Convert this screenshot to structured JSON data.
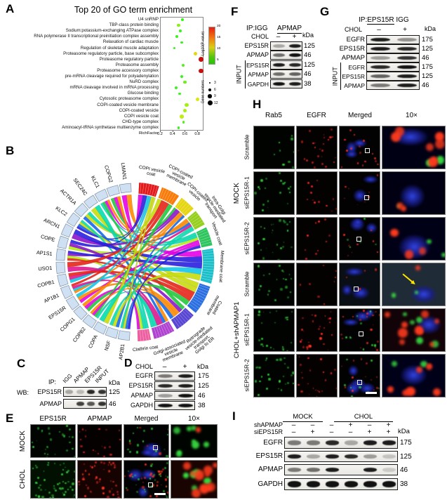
{
  "panels": {
    "a": {
      "label": "A",
      "title": "Top 20 of GO term enrichment",
      "xlabel": "RichFactor",
      "x_ticks": [
        "0.2",
        "0.4",
        "0.6",
        "0.8"
      ],
      "colorbar_title": "-Log10(P-value)",
      "colorbar_ticks": [
        "20",
        "15",
        "10",
        "5"
      ],
      "size_legend_title": "Gene numbers",
      "size_legend_ticks": [
        "3",
        "6",
        "9",
        "12"
      ],
      "chart_data": {
        "type": "scatter",
        "title": "Top 20 of GO term enrichment",
        "xlabel": "RichFactor",
        "xlim": [
          0.2,
          0.9
        ],
        "color_scale": {
          "label": "-Log10(P-value)",
          "low": "#24c40a",
          "high": "#e32010",
          "range": [
            5,
            20
          ]
        },
        "size_scale": {
          "label": "Gene numbers",
          "ticks": [
            3,
            6,
            9,
            12
          ]
        },
        "points": [
          {
            "term": "U4 snRNP",
            "rich_factor": 0.56,
            "neg_log10_p": 6,
            "gene_number": 3
          },
          {
            "term": "TBP-class protein binding",
            "rich_factor": 0.5,
            "neg_log10_p": 9,
            "gene_number": 5
          },
          {
            "term": "Sodium:potassium-exchanging ATPase complex",
            "rich_factor": 0.53,
            "neg_log10_p": 6,
            "gene_number": 3
          },
          {
            "term": "RNA polymerase II transcriptional preinitiation complex assembly",
            "rich_factor": 0.47,
            "neg_log10_p": 6,
            "gene_number": 4
          },
          {
            "term": "Relaxation of cardiac muscle",
            "rich_factor": 0.55,
            "neg_log10_p": 6,
            "gene_number": 3
          },
          {
            "term": "Regulation of skeletal muscle adaptation",
            "rich_factor": 0.43,
            "neg_log10_p": 6,
            "gene_number": 3
          },
          {
            "term": "Proteasome regulatory particle, base subcomplex",
            "rich_factor": 0.77,
            "neg_log10_p": 13,
            "gene_number": 6
          },
          {
            "term": "Proteasome regulatory particle",
            "rich_factor": 0.86,
            "neg_log10_p": 20,
            "gene_number": 9
          },
          {
            "term": "Proteasome assembly",
            "rich_factor": 0.57,
            "neg_log10_p": 7,
            "gene_number": 4
          },
          {
            "term": "Proteasome accessory complex",
            "rich_factor": 0.86,
            "neg_log10_p": 20,
            "gene_number": 9
          },
          {
            "term": "pre-mRNA cleavage required for polyadenylation",
            "rich_factor": 0.55,
            "neg_log10_p": 6,
            "gene_number": 4
          },
          {
            "term": "NuRD complex",
            "rich_factor": 0.6,
            "neg_log10_p": 8,
            "gene_number": 4
          },
          {
            "term": "mRNA cleavage involved in mRNA processing",
            "rich_factor": 0.46,
            "neg_log10_p": 6,
            "gene_number": 4
          },
          {
            "term": "Glucose binding",
            "rich_factor": 0.52,
            "neg_log10_p": 6,
            "gene_number": 3
          },
          {
            "term": "Cytosolic proteasome complex",
            "rich_factor": 0.8,
            "neg_log10_p": 12,
            "gene_number": 6
          },
          {
            "term": "COPI-coated vesicle membrane",
            "rich_factor": 0.63,
            "neg_log10_p": 10,
            "gene_number": 6
          },
          {
            "term": "COPI-coated vesicle",
            "rich_factor": 0.6,
            "neg_log10_p": 10,
            "gene_number": 6
          },
          {
            "term": "COPI vesicle coat",
            "rich_factor": 0.55,
            "neg_log10_p": 11,
            "gene_number": 8
          },
          {
            "term": "CHD-type complex",
            "rich_factor": 0.58,
            "neg_log10_p": 7,
            "gene_number": 3
          },
          {
            "term": "Aminoacyl-tRNA synthetase multienzyme complex",
            "rich_factor": 0.5,
            "neg_log10_p": 6,
            "gene_number": 3
          }
        ]
      }
    },
    "b": {
      "label": "B",
      "chart_data_note": "chord diagram: genes (left, light blue) linked to GO terms (right, colored)",
      "genes": [
        "LMAN1",
        "COPG2",
        "KLC1",
        "SEC24C",
        "ACTR1A",
        "KLC2",
        "ARCN1",
        "COPE",
        "AP1S1",
        "USO1",
        "COPB1",
        "AP1B1",
        "EPS15R",
        "COPG1",
        "COPB2",
        "COPA",
        "NSF",
        "AP2B1"
      ],
      "gene_color": "#cfe0f2",
      "go_terms": [
        {
          "name": "COPI vesicle coat",
          "color": "#e31a1c"
        },
        {
          "name": "COPI-coated vesicle membrane",
          "color": "#f97b0a"
        },
        {
          "name": "COPI-coated vesicle",
          "color": "#e6d513"
        },
        {
          "name": "Intra-Golgi vesicle-mediated transport",
          "color": "#96cf1e"
        },
        {
          "name": "Vesicle coat",
          "color": "#2ec45e"
        },
        {
          "name": "Membrane coat",
          "color": "#1bbfc9"
        },
        {
          "name": "Coated membrane",
          "color": "#2b6fe0"
        },
        {
          "name": "Retrograde vesicle-mediated transport, Golgi to ER",
          "color": "#5946d2"
        },
        {
          "name": "Golgi-associated vesicle membrane",
          "color": "#b044d0"
        },
        {
          "name": "Clathrin coat",
          "color": "#ee5fa0"
        }
      ]
    },
    "c": {
      "label": "C",
      "wb": "WB:",
      "ip": "IP:",
      "kda": "kDa",
      "lanes": [
        "IGG",
        "APMAP",
        "EPS15R",
        "INPUT"
      ],
      "rows": [
        {
          "protein": "EPS15R",
          "kda": "125",
          "bands": [
            0.3,
            0.22,
            0.85,
            0.8
          ]
        },
        {
          "protein": "APMAP",
          "kda": "46",
          "bands": [
            0,
            0.75,
            0.65,
            0.8
          ]
        }
      ]
    },
    "d": {
      "label": "D",
      "condition": "CHOL",
      "signs": [
        "–",
        "+"
      ],
      "kda": "kDa",
      "rows": [
        {
          "protein": "EGFR",
          "kda": "175",
          "bands": [
            0.5,
            0.9
          ]
        },
        {
          "protein": "EPS15R",
          "kda": "125",
          "bands": [
            0.85,
            0.9
          ]
        },
        {
          "protein": "APMAP",
          "kda": "46",
          "bands": [
            0.35,
            0.95
          ]
        },
        {
          "protein": "GAPDH",
          "kda": "38",
          "bands": [
            0.95,
            0.95
          ]
        }
      ]
    },
    "e": {
      "label": "E",
      "col_headers": [
        "EPS15R",
        "APMAP",
        "Merged",
        "10×"
      ],
      "row_labels": [
        "MOCK",
        "CHOL"
      ],
      "cells": [
        [
          {
            "g": 26,
            "tint": "#010401"
          },
          {
            "r": 20,
            "tint": "#050101"
          },
          {
            "n": 3,
            "g": 16,
            "r": 8,
            "roi": true
          },
          {
            "gz": 8,
            "rz": 1,
            "big": true,
            "tint": "#000400"
          }
        ],
        [
          {
            "g": 55,
            "tint": "#021002"
          },
          {
            "r": 48,
            "tint": "#150302"
          },
          {
            "n": 3,
            "g": 30,
            "r": 30,
            "roi": true,
            "sb": true
          },
          {
            "rz": 10,
            "gz": 5,
            "big": true,
            "tint": "#190402"
          }
        ]
      ]
    },
    "f": {
      "label": "F",
      "ip_prefix": "IP:IGG",
      "ip_target": "APMAP",
      "condition": "CHOL",
      "signs": [
        "–",
        "+"
      ],
      "kda": "kDa",
      "input": "INPUT",
      "ip_rows": [
        {
          "protein": "EPS15R",
          "kda": "125",
          "bands": [
            0.3,
            0.9
          ]
        },
        {
          "protein": "APMAP",
          "kda": "46",
          "bands": [
            0.55,
            0.95
          ]
        }
      ],
      "input_rows": [
        {
          "protein": "EPS15R",
          "kda": "125",
          "bands": [
            0.9,
            0.85
          ]
        },
        {
          "protein": "APMAP",
          "kda": "46",
          "bands": [
            0.55,
            0.6
          ]
        },
        {
          "protein": "GAPDH",
          "kda": "38",
          "bands": [
            0.95,
            0.9
          ]
        }
      ]
    },
    "g": {
      "label": "G",
      "ip_prefix": "IP:",
      "ip_target": "EPS15R",
      "ip_suffix": "IGG",
      "condition": "CHOL",
      "signs": [
        "–",
        "+"
      ],
      "kda": "kDa",
      "input": "INPUT",
      "ip_rows": [
        {
          "protein": "EGFR",
          "kda": "175",
          "bands": [
            0.9,
            0.4
          ]
        },
        {
          "protein": "EPS15R",
          "kda": "125",
          "bands": [
            0.9,
            0.85
          ]
        },
        {
          "protein": "APMAP",
          "kda": "46",
          "bands": [
            0.35,
            0.8
          ]
        }
      ],
      "input_rows": [
        {
          "protein": "EGFR",
          "kda": "175",
          "bands": [
            0.85,
            0.95
          ]
        },
        {
          "protein": "EPS15R",
          "kda": "125",
          "bands": [
            0.6,
            0.9
          ]
        },
        {
          "protein": "APMAP",
          "kda": "46",
          "bands": [
            0.5,
            0.9
          ]
        }
      ]
    },
    "h": {
      "label": "H",
      "col_headers": [
        "Rab5",
        "EGFR",
        "Merged",
        "10×"
      ],
      "group_labels": [
        "MOCK",
        "CHOL+shAPMAP1"
      ],
      "row_labels": [
        "Scramble",
        "siEPS15R-1",
        "siEPS15R-2",
        "Scramble",
        "siEPS15R-1",
        "siEPS15R-2"
      ],
      "cells": [
        [
          {
            "g": 9,
            "tint": "#010301"
          },
          {
            "r": 26,
            "tint": "#040101"
          },
          {
            "n": 3,
            "r": 16,
            "roi": true
          },
          {
            "rz": 7,
            "gz": 2,
            "n": 1,
            "big": true,
            "tint": "#000014"
          }
        ],
        [
          {
            "g": 20,
            "tint": "#010301"
          },
          {
            "r": 12,
            "tint": "#040101"
          },
          {
            "n": 2,
            "r": 8,
            "roi": true
          },
          {
            "rz": 2,
            "gz": 1,
            "n": 1,
            "big": true,
            "tint": "#000012"
          }
        ],
        [
          {
            "g": 24,
            "tint": "#010301"
          },
          {
            "r": 10,
            "tint": "#040101"
          },
          {
            "n": 3,
            "r": 8,
            "g": 5,
            "roi": true
          },
          {
            "rz": 3,
            "gz": 2,
            "n": 1,
            "big": true,
            "tint": "#000016"
          }
        ],
        [
          {
            "g": 20,
            "tint": "#010301"
          },
          {
            "r": 8,
            "tint": "#040101"
          },
          {
            "n": 3,
            "r": 4,
            "roi": true,
            "tint": "#0a0f16"
          },
          {
            "rz": 1,
            "gz": 2,
            "n": 1,
            "big": true,
            "arrow": true,
            "tint": "#202b38"
          }
        ],
        [
          {
            "g": 24,
            "tint": "#010301"
          },
          {
            "r": 30,
            "tint": "#050101"
          },
          {
            "n": 3,
            "r": 20,
            "g": 10,
            "roi": true
          },
          {
            "rz": 9,
            "gz": 5,
            "n": 1,
            "big": true,
            "tint": "#120309"
          }
        ],
        [
          {
            "g": 26,
            "tint": "#010301"
          },
          {
            "r": 22,
            "tint": "#050101"
          },
          {
            "n": 4,
            "r": 14,
            "g": 8,
            "roi": true,
            "sb": true
          },
          {
            "rz": 7,
            "gz": 2,
            "n": 1,
            "big": true,
            "tint": "#000018"
          }
        ]
      ]
    },
    "i": {
      "label": "I",
      "group_labels": [
        "MOCK",
        "CHOL"
      ],
      "kda": "kDa",
      "treatments": [
        {
          "name": "shAPMAP",
          "signs": [
            "–",
            "–",
            "–",
            "+",
            "–",
            "+"
          ]
        },
        {
          "name": "siEPS15R",
          "signs": [
            "–",
            "+",
            "–",
            "–",
            "+",
            "+"
          ]
        }
      ],
      "rows": [
        {
          "protein": "EGFR",
          "kda": "175",
          "bands": [
            0.5,
            0.5,
            0.85,
            0.3,
            0.9,
            0.9
          ]
        },
        {
          "protein": "EPS15R",
          "kda": "125",
          "bands": [
            0.9,
            0.3,
            0.9,
            0.85,
            0.35,
            0.18
          ]
        },
        {
          "protein": "APMAP",
          "kda": "46",
          "bands": [
            0.5,
            0.55,
            0.9,
            0,
            0.9,
            0.15
          ]
        },
        {
          "protein": "GAPDH",
          "kda": "38",
          "bands": [
            0.95,
            0.95,
            0.95,
            0.95,
            0.95,
            0.95
          ]
        }
      ]
    }
  }
}
